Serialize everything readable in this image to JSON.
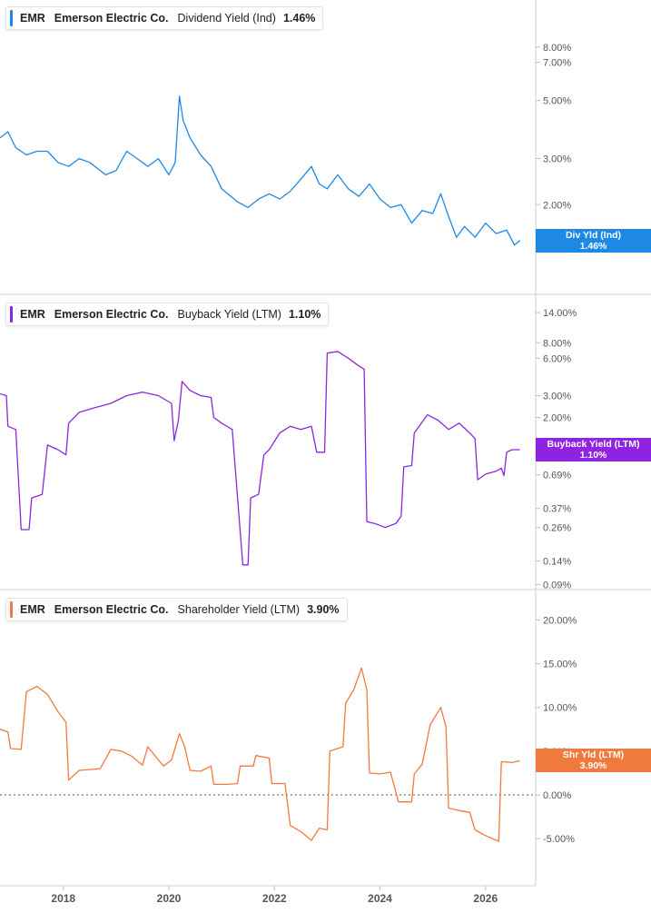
{
  "colors": {
    "dividend": "#1e88e5",
    "buyback": "#8e24e0",
    "shareholder": "#f07a3e",
    "grid": "#e0e0e0",
    "axis_text": "#555555"
  },
  "panels": [
    {
      "ticker": "EMR",
      "company": "Emerson Electric Co.",
      "metric": "Dividend Yield (Ind)",
      "value": "1.46%",
      "badge_label": "Div Yld (Ind)",
      "badge_value": "1.46%"
    },
    {
      "ticker": "EMR",
      "company": "Emerson Electric Co.",
      "metric": "Buyback Yield (LTM)",
      "value": "1.10%",
      "badge_label": "Buyback Yield (LTM)",
      "badge_value": "1.10%"
    },
    {
      "ticker": "EMR",
      "company": "Emerson Electric Co.",
      "metric": "Shareholder Yield (LTM)",
      "value": "3.90%",
      "badge_label": "Shr Yld (LTM)",
      "badge_value": "3.90%"
    }
  ],
  "x_axis": {
    "ticks": [
      {
        "value": 2018,
        "label": "2018"
      },
      {
        "value": 2020,
        "label": "2020"
      },
      {
        "value": 2022,
        "label": "2022"
      },
      {
        "value": 2024,
        "label": "2024"
      },
      {
        "value": 2026,
        "label": "2026"
      }
    ],
    "range": [
      2016.8,
      2026.95
    ]
  },
  "chart_data": [
    {
      "type": "line",
      "scale": "log",
      "ylim": [
        1.1,
        8.8
      ],
      "y_ticks": [
        {
          "value": 8,
          "label": "8.00%"
        },
        {
          "value": 7,
          "label": "7.00%"
        },
        {
          "value": 5,
          "label": "5.00%"
        },
        {
          "value": 3,
          "label": "3.00%"
        },
        {
          "value": 2,
          "label": "2.00%"
        }
      ],
      "series": [
        {
          "name": "Div Yld (Ind)",
          "points": [
            [
              2016.8,
              3.6
            ],
            [
              2016.95,
              3.8
            ],
            [
              2017.1,
              3.3
            ],
            [
              2017.3,
              3.1
            ],
            [
              2017.5,
              3.2
            ],
            [
              2017.7,
              3.2
            ],
            [
              2017.9,
              2.9
            ],
            [
              2018.1,
              2.8
            ],
            [
              2018.3,
              3.0
            ],
            [
              2018.5,
              2.9
            ],
            [
              2018.8,
              2.6
            ],
            [
              2019.0,
              2.7
            ],
            [
              2019.2,
              3.2
            ],
            [
              2019.4,
              3.0
            ],
            [
              2019.6,
              2.8
            ],
            [
              2019.8,
              3.0
            ],
            [
              2020.0,
              2.6
            ],
            [
              2020.12,
              2.9
            ],
            [
              2020.2,
              5.2
            ],
            [
              2020.27,
              4.2
            ],
            [
              2020.4,
              3.6
            ],
            [
              2020.6,
              3.1
            ],
            [
              2020.8,
              2.8
            ],
            [
              2021.0,
              2.3
            ],
            [
              2021.3,
              2.05
            ],
            [
              2021.5,
              1.95
            ],
            [
              2021.7,
              2.1
            ],
            [
              2021.9,
              2.2
            ],
            [
              2022.1,
              2.1
            ],
            [
              2022.3,
              2.25
            ],
            [
              2022.5,
              2.5
            ],
            [
              2022.7,
              2.8
            ],
            [
              2022.85,
              2.4
            ],
            [
              2023.0,
              2.3
            ],
            [
              2023.2,
              2.6
            ],
            [
              2023.4,
              2.3
            ],
            [
              2023.6,
              2.15
            ],
            [
              2023.8,
              2.4
            ],
            [
              2024.0,
              2.1
            ],
            [
              2024.2,
              1.95
            ],
            [
              2024.4,
              2.0
            ],
            [
              2024.6,
              1.7
            ],
            [
              2024.8,
              1.9
            ],
            [
              2025.0,
              1.85
            ],
            [
              2025.15,
              2.2
            ],
            [
              2025.3,
              1.8
            ],
            [
              2025.45,
              1.5
            ],
            [
              2025.6,
              1.65
            ],
            [
              2025.8,
              1.5
            ],
            [
              2026.0,
              1.7
            ],
            [
              2026.2,
              1.55
            ],
            [
              2026.4,
              1.6
            ],
            [
              2026.55,
              1.4
            ],
            [
              2026.65,
              1.46
            ]
          ]
        }
      ]
    },
    {
      "type": "line",
      "scale": "log",
      "ylim": [
        0.085,
        15.5
      ],
      "y_ticks": [
        {
          "value": 14,
          "label": "14.00%"
        },
        {
          "value": 8,
          "label": "8.00%"
        },
        {
          "value": 6,
          "label": "6.00%"
        },
        {
          "value": 3,
          "label": "3.00%"
        },
        {
          "value": 2,
          "label": "2.00%"
        },
        {
          "value": 0.69,
          "label": "0.69%"
        },
        {
          "value": 0.37,
          "label": "0.37%"
        },
        {
          "value": 0.26,
          "label": "0.26%"
        },
        {
          "value": 0.14,
          "label": "0.14%"
        },
        {
          "value": 0.09,
          "label": "0.09%"
        }
      ],
      "series": [
        {
          "name": "Buyback Yield (LTM)",
          "points": [
            [
              2016.8,
              3.1
            ],
            [
              2016.92,
              3.0
            ],
            [
              2016.95,
              1.7
            ],
            [
              2017.1,
              1.6
            ],
            [
              2017.2,
              0.25
            ],
            [
              2017.35,
              0.25
            ],
            [
              2017.4,
              0.45
            ],
            [
              2017.6,
              0.48
            ],
            [
              2017.7,
              1.2
            ],
            [
              2017.9,
              1.1
            ],
            [
              2018.05,
              1.0
            ],
            [
              2018.1,
              1.8
            ],
            [
              2018.3,
              2.2
            ],
            [
              2018.6,
              2.4
            ],
            [
              2018.9,
              2.6
            ],
            [
              2019.2,
              3.0
            ],
            [
              2019.5,
              3.2
            ],
            [
              2019.8,
              3.0
            ],
            [
              2020.05,
              2.6
            ],
            [
              2020.1,
              1.3
            ],
            [
              2020.18,
              1.9
            ],
            [
              2020.25,
              3.9
            ],
            [
              2020.4,
              3.3
            ],
            [
              2020.6,
              3.0
            ],
            [
              2020.8,
              2.9
            ],
            [
              2020.85,
              2.0
            ],
            [
              2021.0,
              1.8
            ],
            [
              2021.2,
              1.6
            ],
            [
              2021.4,
              0.13
            ],
            [
              2021.5,
              0.13
            ],
            [
              2021.55,
              0.45
            ],
            [
              2021.7,
              0.48
            ],
            [
              2021.8,
              1.0
            ],
            [
              2021.9,
              1.1
            ],
            [
              2022.1,
              1.5
            ],
            [
              2022.3,
              1.7
            ],
            [
              2022.5,
              1.6
            ],
            [
              2022.7,
              1.7
            ],
            [
              2022.8,
              1.05
            ],
            [
              2022.95,
              1.05
            ],
            [
              2023.0,
              6.6
            ],
            [
              2023.2,
              6.8
            ],
            [
              2023.4,
              6.0
            ],
            [
              2023.6,
              5.2
            ],
            [
              2023.7,
              4.9
            ],
            [
              2023.75,
              0.29
            ],
            [
              2023.9,
              0.28
            ],
            [
              2024.1,
              0.26
            ],
            [
              2024.3,
              0.28
            ],
            [
              2024.4,
              0.32
            ],
            [
              2024.45,
              0.8
            ],
            [
              2024.6,
              0.82
            ],
            [
              2024.65,
              1.5
            ],
            [
              2024.9,
              2.1
            ],
            [
              2025.1,
              1.9
            ],
            [
              2025.3,
              1.6
            ],
            [
              2025.5,
              1.8
            ],
            [
              2025.7,
              1.5
            ],
            [
              2025.8,
              1.35
            ],
            [
              2025.85,
              0.63
            ],
            [
              2026.0,
              0.7
            ],
            [
              2026.2,
              0.74
            ],
            [
              2026.3,
              0.78
            ],
            [
              2026.35,
              0.68
            ],
            [
              2026.4,
              1.05
            ],
            [
              2026.5,
              1.1
            ],
            [
              2026.65,
              1.1
            ]
          ]
        }
      ]
    },
    {
      "type": "line",
      "scale": "linear",
      "ylim": [
        -8,
        21.5
      ],
      "y_ticks": [
        {
          "value": 20,
          "label": "20.00%"
        },
        {
          "value": 15,
          "label": "15.00%"
        },
        {
          "value": 10,
          "label": "10.00%"
        },
        {
          "value": 5,
          "label": "5.00%"
        },
        {
          "value": 0,
          "label": "0.00%"
        },
        {
          "value": -5,
          "label": "-5.00%"
        }
      ],
      "zero_line": true,
      "series": [
        {
          "name": "Shr Yld (LTM)",
          "points": [
            [
              2016.8,
              7.5
            ],
            [
              2016.95,
              7.2
            ],
            [
              2017.0,
              5.3
            ],
            [
              2017.2,
              5.2
            ],
            [
              2017.3,
              11.8
            ],
            [
              2017.5,
              12.4
            ],
            [
              2017.7,
              11.5
            ],
            [
              2017.9,
              9.5
            ],
            [
              2018.05,
              8.3
            ],
            [
              2018.1,
              1.7
            ],
            [
              2018.3,
              2.8
            ],
            [
              2018.5,
              2.9
            ],
            [
              2018.7,
              3.0
            ],
            [
              2018.9,
              5.2
            ],
            [
              2019.1,
              5.0
            ],
            [
              2019.3,
              4.4
            ],
            [
              2019.5,
              3.4
            ],
            [
              2019.6,
              5.5
            ],
            [
              2019.8,
              4.0
            ],
            [
              2019.9,
              3.3
            ],
            [
              2020.05,
              4.0
            ],
            [
              2020.2,
              7.0
            ],
            [
              2020.3,
              5.5
            ],
            [
              2020.4,
              2.8
            ],
            [
              2020.6,
              2.7
            ],
            [
              2020.8,
              3.3
            ],
            [
              2020.85,
              1.2
            ],
            [
              2021.1,
              1.2
            ],
            [
              2021.3,
              1.3
            ],
            [
              2021.35,
              3.3
            ],
            [
              2021.6,
              3.3
            ],
            [
              2021.65,
              4.5
            ],
            [
              2021.9,
              4.2
            ],
            [
              2021.95,
              1.3
            ],
            [
              2022.2,
              1.3
            ],
            [
              2022.3,
              -3.5
            ],
            [
              2022.5,
              -4.2
            ],
            [
              2022.7,
              -5.2
            ],
            [
              2022.85,
              -3.8
            ],
            [
              2023.0,
              -4.0
            ],
            [
              2023.05,
              5.0
            ],
            [
              2023.3,
              5.5
            ],
            [
              2023.35,
              10.5
            ],
            [
              2023.5,
              12.0
            ],
            [
              2023.65,
              14.5
            ],
            [
              2023.75,
              12.0
            ],
            [
              2023.8,
              2.5
            ],
            [
              2024.0,
              2.4
            ],
            [
              2024.2,
              2.6
            ],
            [
              2024.35,
              -0.8
            ],
            [
              2024.6,
              -0.8
            ],
            [
              2024.65,
              2.4
            ],
            [
              2024.8,
              3.5
            ],
            [
              2024.95,
              8.0
            ],
            [
              2025.15,
              10.0
            ],
            [
              2025.25,
              7.8
            ],
            [
              2025.3,
              -1.5
            ],
            [
              2025.5,
              -1.8
            ],
            [
              2025.7,
              -2.0
            ],
            [
              2025.8,
              -4.0
            ],
            [
              2025.95,
              -4.5
            ],
            [
              2026.05,
              -4.8
            ],
            [
              2026.25,
              -5.3
            ],
            [
              2026.3,
              3.8
            ],
            [
              2026.5,
              3.7
            ],
            [
              2026.65,
              3.9
            ]
          ]
        }
      ]
    }
  ]
}
